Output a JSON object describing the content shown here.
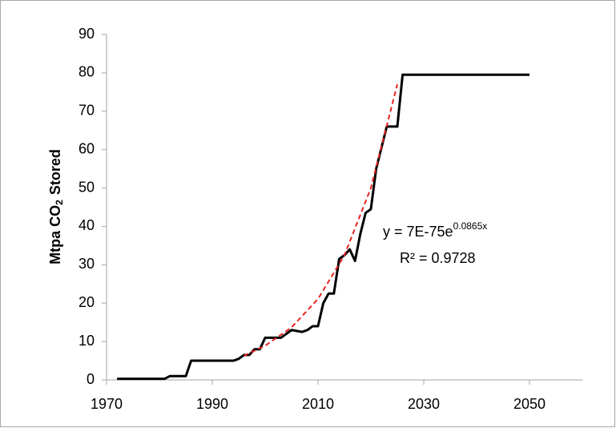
{
  "chart_data": {
    "type": "line",
    "y_label": {
      "text": "Mtpa CO",
      "subscript": "2",
      "suffix": "Stored"
    },
    "annotation": {
      "equation": "y = 7E-75e",
      "exponent": "0.0865x",
      "r_squared": "R² = 0.9728"
    },
    "series": [
      {
        "color": "#000000",
        "style": "solid",
        "x": [
          1972,
          1981,
          1982,
          1985,
          1986,
          1994,
          1995,
          1996,
          1997,
          1998,
          1999,
          2000,
          2003,
          2005,
          2007,
          2008,
          2009,
          2010,
          2011,
          2012,
          2013,
          2014,
          2015,
          2016,
          2017,
          2018,
          2019,
          2020,
          2021,
          2023,
          2025,
          2026,
          2050
        ],
        "values": [
          0.3,
          0.3,
          1,
          1,
          5,
          5,
          5.5,
          6.5,
          6.5,
          8,
          8,
          11,
          11,
          13,
          12.5,
          13,
          14,
          14,
          20,
          22.5,
          22.5,
          31.5,
          32.5,
          34,
          31,
          38,
          43.5,
          44.5,
          55,
          66,
          66,
          79.5,
          79.5
        ]
      },
      {
        "color": "#e8231f",
        "style": "dashed",
        "x": [
          1996,
          2000,
          2005,
          2010,
          2015,
          2020,
          2025
        ],
        "values": [
          6.3,
          8.9,
          13.7,
          21.1,
          32.5,
          50,
          77
        ]
      }
    ],
    "xlim": [
      1970,
      2060
    ],
    "xticks": [
      1970,
      1990,
      2010,
      2030,
      2050
    ],
    "ylim": [
      0,
      90
    ],
    "yticks": [
      0,
      10,
      20,
      30,
      40,
      50,
      60,
      70,
      80,
      90
    ]
  }
}
